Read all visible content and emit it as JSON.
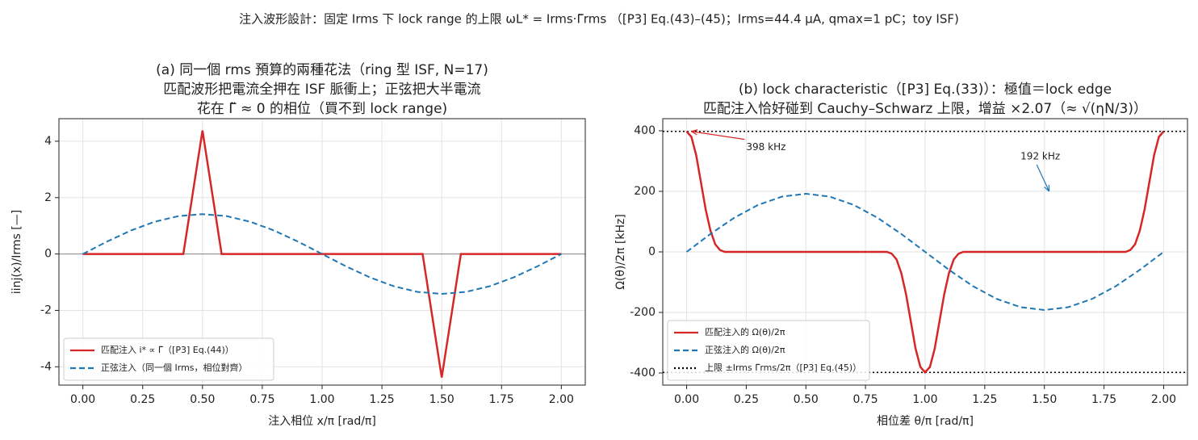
{
  "suptitle": "注入波形設計：固定 Irms 下 lock range 的上限 ωL* = Irms·Γ̃rms （[P3] Eq.(43)–(45)；Irms=44.4 µA, qmax=1 pC；toy ISF)",
  "chart_data": [
    {
      "type": "line",
      "title": [
        "(a) 同一個 rms 預算的兩種花法（ring 型 ISF, N=17)",
        "匹配波形把電流全押在 ISF 脈衝上；正弦把大半電流",
        "花在 Γ̃ ≈ 0 的相位（買不到 lock range)"
      ],
      "xlabel": "注入相位 x/π  [rad/π]",
      "ylabel": "iinj(x)/Irms  [—]",
      "xlim": [
        -0.1,
        2.1
      ],
      "ylim": [
        -4.65,
        4.8
      ],
      "xticks": [
        {
          "value": 0,
          "label": "0.00"
        },
        {
          "value": 0.25,
          "label": "0.25"
        },
        {
          "value": 0.5,
          "label": "0.50"
        },
        {
          "value": 0.75,
          "label": "0.75"
        },
        {
          "value": 1,
          "label": "1.00"
        },
        {
          "value": 1.25,
          "label": "1.25"
        },
        {
          "value": 1.5,
          "label": "1.50"
        },
        {
          "value": 1.75,
          "label": "1.75"
        },
        {
          "value": 2,
          "label": "2.00"
        }
      ],
      "yticks": [
        -4,
        -2,
        0,
        2,
        4
      ],
      "grid": true,
      "legend": "lower left",
      "hline": 0,
      "series": [
        {
          "name": "匹配注入 i* ∝ Γ̃（[P3] Eq.(44)）",
          "color": "#d62728",
          "dash": "solid",
          "x": [
            0,
            0.42,
            0.5,
            0.58,
            1.42,
            1.5,
            1.58,
            2
          ],
          "values": [
            0,
            0,
            4.38,
            0,
            0,
            -4.38,
            0,
            0
          ]
        },
        {
          "name": "正弦注入（同一個 Irms，相位對齊）",
          "color": "#1f77b4",
          "dash": "dashed",
          "x": [
            0,
            0.1,
            0.2,
            0.3,
            0.4,
            0.5,
            0.6,
            0.7,
            0.8,
            0.9,
            1,
            1.1,
            1.2,
            1.3,
            1.4,
            1.5,
            1.6,
            1.7,
            1.8,
            1.9,
            2
          ],
          "values": [
            0,
            0.437,
            0.831,
            1.144,
            1.345,
            1.414,
            1.345,
            1.144,
            0.831,
            0.437,
            0,
            -0.437,
            -0.831,
            -1.144,
            -1.345,
            -1.414,
            -1.345,
            -1.144,
            -0.831,
            -0.437,
            0
          ]
        }
      ]
    },
    {
      "type": "line",
      "title": [
        "(b) lock characteristic（[P3] Eq.(33)）：極值＝lock edge",
        "匹配注入恰好碰到 Cauchy–Schwarz 上限，增益 ×2.07（≈ √(ηN/3)）"
      ],
      "xlabel": "相位差 θ/π  [rad/π]",
      "ylabel": "Ω(θ)/2π  [kHz]",
      "xlim": [
        -0.1,
        2.1
      ],
      "ylim": [
        -440,
        440
      ],
      "xticks": [
        {
          "value": 0,
          "label": "0.00"
        },
        {
          "value": 0.25,
          "label": "0.25"
        },
        {
          "value": 0.5,
          "label": "0.50"
        },
        {
          "value": 0.75,
          "label": "0.75"
        },
        {
          "value": 1,
          "label": "1.00"
        },
        {
          "value": 1.25,
          "label": "1.25"
        },
        {
          "value": 1.5,
          "label": "1.50"
        },
        {
          "value": 1.75,
          "label": "1.75"
        },
        {
          "value": 2,
          "label": "2.00"
        }
      ],
      "yticks": [
        -400,
        -200,
        0,
        200,
        400
      ],
      "grid": true,
      "legend": "lower left",
      "series": [
        {
          "name": "匹配注入的 Ω(θ)/2π",
          "color": "#d62728",
          "dash": "solid",
          "x": [
            0,
            0.02,
            0.04,
            0.06,
            0.08,
            0.1,
            0.12,
            0.14,
            0.16,
            0.84,
            0.86,
            0.88,
            0.9,
            0.92,
            0.94,
            0.96,
            0.98,
            1,
            1.02,
            1.04,
            1.06,
            1.08,
            1.1,
            1.12,
            1.14,
            1.16,
            1.84,
            1.86,
            1.88,
            1.9,
            1.92,
            1.94,
            1.96,
            1.98,
            2
          ],
          "values": [
            398,
            380,
            320,
            230,
            140,
            70,
            25,
            6,
            0,
            0,
            -6,
            -25,
            -70,
            -140,
            -230,
            -320,
            -380,
            -398,
            -380,
            -320,
            -230,
            -140,
            -70,
            -25,
            -6,
            0,
            0,
            6,
            25,
            70,
            140,
            230,
            320,
            380,
            398
          ]
        },
        {
          "name": "正弦注入的 Ω(θ)/2π",
          "color": "#1f77b4",
          "dash": "dashed",
          "x": [
            0,
            0.1,
            0.2,
            0.3,
            0.4,
            0.5,
            0.6,
            0.7,
            0.8,
            0.9,
            1,
            1.1,
            1.2,
            1.3,
            1.4,
            1.5,
            1.6,
            1.7,
            1.8,
            1.9,
            2
          ],
          "values": [
            0,
            59.3,
            112.9,
            155.3,
            182.6,
            192,
            182.6,
            155.3,
            112.9,
            59.3,
            0,
            -59.3,
            -112.9,
            -155.3,
            -182.6,
            -192,
            -182.6,
            -155.3,
            -112.9,
            -59.3,
            0
          ]
        }
      ],
      "bounds": {
        "name": "上限 ±Irms Γ̃rms/2π（[P3] Eq.(45)）",
        "color": "#000000",
        "values": [
          398,
          -398
        ]
      },
      "annotations": [
        {
          "text": "398 kHz",
          "color": "#d62728",
          "x": 0.25,
          "y": 345,
          "arrow_x": 0.02,
          "arrow_y": 398
        },
        {
          "text": "192 kHz",
          "color": "#1f77b4",
          "x": 1.4,
          "y": 315,
          "arrow_x": 1.52,
          "arrow_y": 200
        }
      ]
    }
  ]
}
